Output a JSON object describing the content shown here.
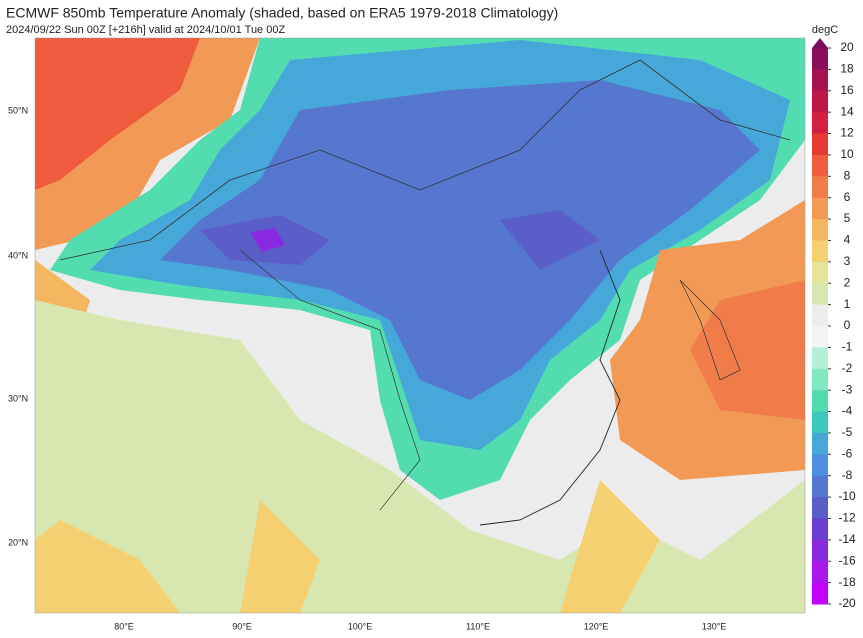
{
  "title": "ECMWF 850mb Temperature Anomaly (shaded, based on ERA5 1979-2018 Climatology)",
  "subtitle": "2024/09/22 Sun 00Z [+216h] valid at 2024/10/01 Tue 00Z",
  "colorbar": {
    "unit": "degC",
    "levels": [
      20,
      18,
      16,
      14,
      12,
      10,
      8,
      6,
      5,
      4,
      3,
      2,
      1,
      0,
      -1,
      -2,
      -3,
      -4,
      -5,
      -6,
      -8,
      -10,
      -12,
      -14,
      -16,
      -18,
      -20
    ],
    "top_color": "#7a0a5e",
    "colors": [
      "#8b0e5a",
      "#a5124f",
      "#c01646",
      "#d4203e",
      "#e53a33",
      "#ef5b3c",
      "#f07c4a",
      "#f29a55",
      "#f3b760",
      "#f5d070",
      "#e6e39a",
      "#d8e6b0",
      "#ececec",
      "#f3f3f3",
      "#b3f0d8",
      "#80e8c0",
      "#52dcb0",
      "#3cc8bd",
      "#46a8d8",
      "#4f8ee0",
      "#5577d0",
      "#5a5ec8",
      "#6a3fd0",
      "#8a2ae0",
      "#aa18ee",
      "#c400ff"
    ]
  },
  "lat_labels": [
    "50°N",
    "40°N",
    "30°N",
    "20°N"
  ],
  "lon_labels": [
    "80°E",
    "90°E",
    "100°E",
    "110°E",
    "120°E",
    "130°E"
  ]
}
